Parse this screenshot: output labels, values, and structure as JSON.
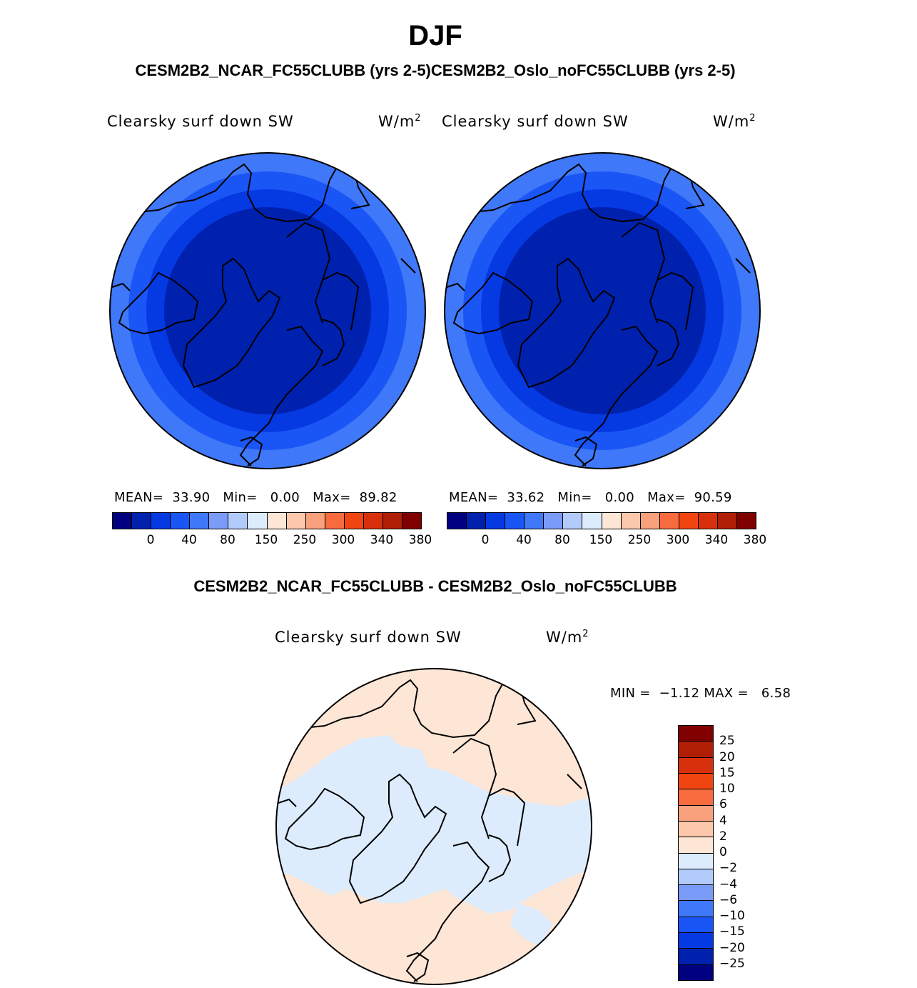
{
  "title": "DJF",
  "subtitle": "CESM2B2_NCAR_FC55CLUBB (yrs 2-5)CESM2B2_Oslo_noFC55CLUBB (yrs 2-5)",
  "panels": [
    {
      "variable": "Clearsky surf down SW",
      "units_base": "W/m",
      "units_exp": "2",
      "mean_label": "MEAN=",
      "mean": "33.90",
      "min_label": "Min=",
      "min": "0.00",
      "max_label": "Max=",
      "max": "89.82"
    },
    {
      "variable": "Clearsky surf down SW",
      "units_base": "W/m",
      "units_exp": "2",
      "mean_label": "MEAN=",
      "mean": "33.62",
      "min_label": "Min=",
      "min": "0.00",
      "max_label": "Max=",
      "max": "90.59"
    }
  ],
  "colorbar_labels": [
    "0",
    "40",
    "80",
    "150",
    "250",
    "300",
    "340",
    "380"
  ],
  "colorbar_colors": [
    "#000080",
    "#0021ae",
    "#0539e2",
    "#1a55f5",
    "#3f78f8",
    "#7a9cf8",
    "#b3cbfb",
    "#dcecfd",
    "#fde6d6",
    "#fbc8ab",
    "#f9a07c",
    "#f76b3e",
    "#f04510",
    "#d8300c",
    "#b01e05",
    "#800000"
  ],
  "difference": {
    "title": "CESM2B2_NCAR_FC55CLUBB - CESM2B2_Oslo_noFC55CLUBB",
    "variable": "Clearsky surf down SW",
    "units_base": "W/m",
    "units_exp": "2",
    "min_label": "MIN =",
    "min": "−1.12",
    "max_label": "MAX =",
    "max": "6.58",
    "colorbar_labels": [
      "25",
      "20",
      "15",
      "10",
      "6",
      "4",
      "2",
      "0",
      "−2",
      "−4",
      "−6",
      "−10",
      "−15",
      "−20",
      "−25"
    ],
    "colorbar_colors": [
      "#800000",
      "#b01e05",
      "#d8300c",
      "#f04510",
      "#f76b3e",
      "#f9a07c",
      "#fbc8ab",
      "#fde6d6",
      "#dcecfd",
      "#b3cbfb",
      "#7a9cf8",
      "#3f78f8",
      "#1a55f5",
      "#0539e2",
      "#0021ae",
      "#000080"
    ]
  },
  "map_colors": {
    "outer": "#3f78f8",
    "middle": "#1a55f5",
    "inner": "#0539e2",
    "core": "#0021ae",
    "diff_positive": "#fde6d6",
    "diff_negative": "#dcecfd",
    "diff_strong": "#f9a07c"
  }
}
